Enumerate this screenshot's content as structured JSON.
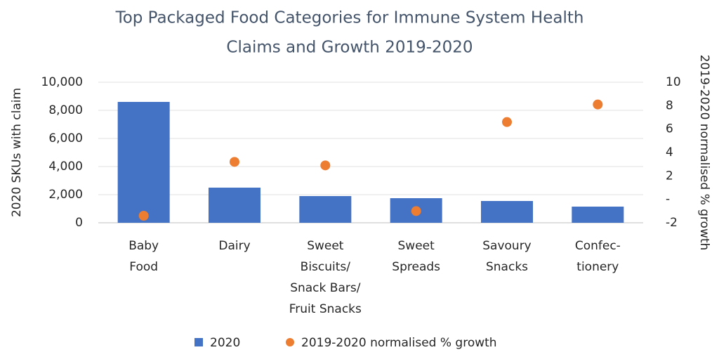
{
  "chart_data": {
    "type": "bar-scatter",
    "title": [
      "Top Packaged Food Categories for Immune  System Health",
      "Claims and Growth  2019-2020"
    ],
    "y_label": "2020 SKUs with claim",
    "y2_label": "2019-2020 normalised % growth",
    "categories": [
      [
        "Baby",
        "Food"
      ],
      [
        "Dairy"
      ],
      [
        "Sweet",
        "Biscuits/",
        "Snack Bars/",
        "Fruit Snacks"
      ],
      [
        "Sweet",
        "Spreads"
      ],
      [
        "Savoury",
        "Snacks"
      ],
      [
        "Confec-",
        "tionery"
      ]
    ],
    "series": [
      {
        "name": "2020",
        "color": "#4472c4",
        "type": "bar",
        "values": [
          8600,
          2500,
          1900,
          1750,
          1550,
          1150
        ]
      },
      {
        "name": "2019-2020 normalised % growth",
        "color": "#ed7d31",
        "type": "scatter",
        "axis": "y2",
        "values": [
          -1.4,
          3.2,
          2.9,
          -1.0,
          6.6,
          8.1
        ]
      }
    ],
    "ylim": [
      0,
      10000
    ],
    "yticks": [
      0,
      {
        "value": 2000,
        "label": "2,000"
      },
      {
        "value": 4000,
        "label": "4,000"
      },
      {
        "value": 6000,
        "label": "6,000"
      },
      {
        "value": 8000,
        "label": "8,000"
      },
      {
        "value": 10000,
        "label": "10,000"
      }
    ],
    "y2lim": [
      -2,
      10
    ],
    "y2ticks": [
      -2,
      {
        "value": 0,
        "label": "-"
      },
      2,
      4,
      6,
      8,
      10
    ],
    "grid": true
  }
}
